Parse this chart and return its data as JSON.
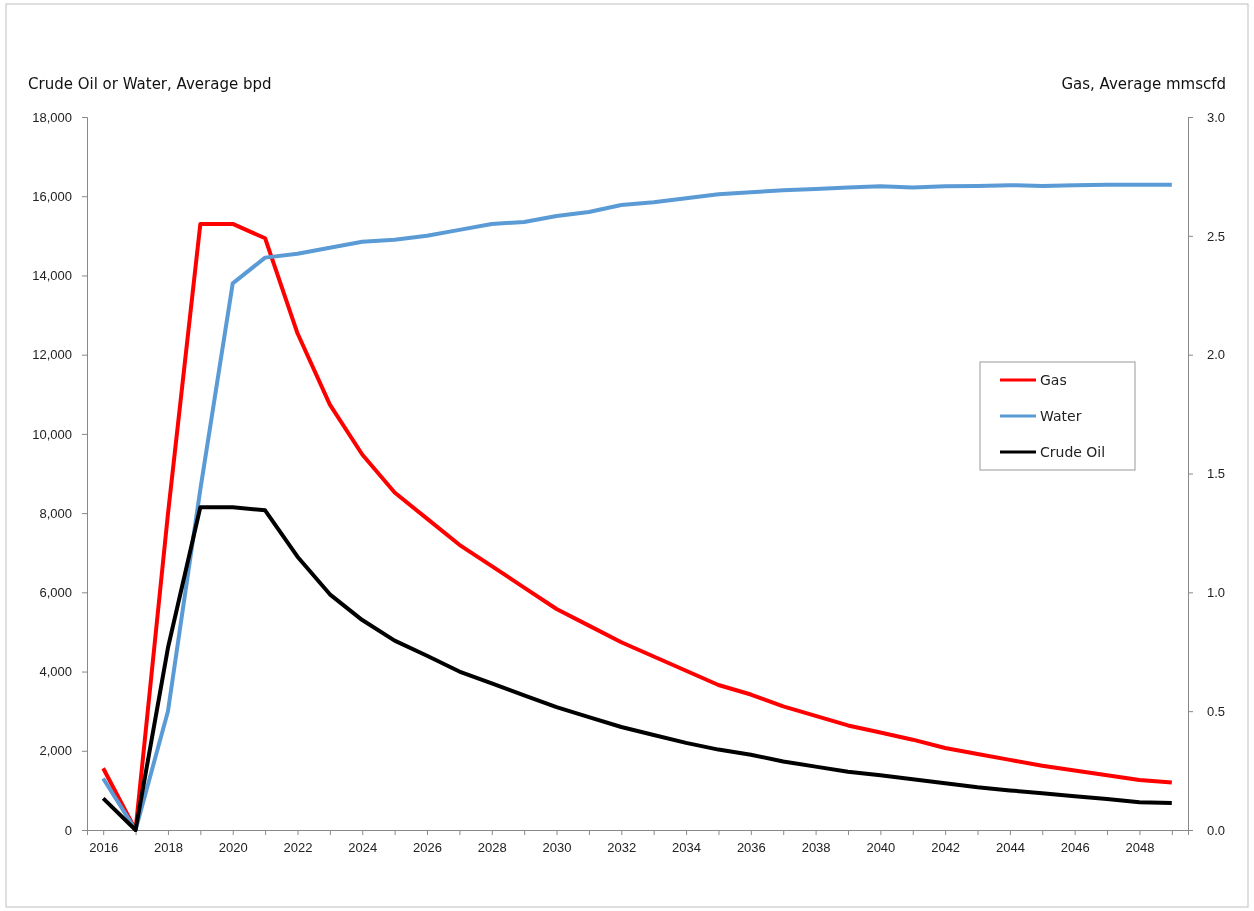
{
  "chart_data": {
    "type": "line",
    "ylabel": "Crude Oil or Water, Average bpd",
    "y2label": "Gas, Average mmscfd",
    "x": [
      2016,
      2017,
      2018,
      2019,
      2020,
      2021,
      2022,
      2023,
      2024,
      2025,
      2026,
      2027,
      2028,
      2029,
      2030,
      2031,
      2032,
      2033,
      2034,
      2035,
      2036,
      2037,
      2038,
      2039,
      2040,
      2041,
      2042,
      2043,
      2044,
      2045,
      2046,
      2047,
      2048,
      2049
    ],
    "xlim": [
      2015.5,
      2049.5
    ],
    "xticks": [
      2016,
      {
        "value": 2017,
        "label": null
      },
      2018,
      {
        "value": 2019,
        "label": null
      },
      2020,
      {
        "value": 2021,
        "label": null
      },
      2022,
      {
        "value": 2023,
        "label": null
      },
      2024,
      {
        "value": 2025,
        "label": null
      },
      2026,
      {
        "value": 2027,
        "label": null
      },
      2028,
      {
        "value": 2029,
        "label": null
      },
      2030,
      {
        "value": 2031,
        "label": null
      },
      2032,
      {
        "value": 2033,
        "label": null
      },
      2034,
      {
        "value": 2035,
        "label": null
      },
      2036,
      {
        "value": 2037,
        "label": null
      },
      2038,
      {
        "value": 2039,
        "label": null
      },
      2040,
      {
        "value": 2041,
        "label": null
      },
      2042,
      {
        "value": 2043,
        "label": null
      },
      2044,
      {
        "value": 2045,
        "label": null
      },
      2046,
      {
        "value": 2047,
        "label": null
      },
      2048,
      {
        "value": 2049,
        "label": null
      }
    ],
    "ylim": [
      0,
      18000
    ],
    "yticks": [
      {
        "value": 0,
        "label": "0"
      },
      {
        "value": 2000,
        "label": "2,000"
      },
      {
        "value": 4000,
        "label": "4,000"
      },
      {
        "value": 6000,
        "label": "6,000"
      },
      {
        "value": 8000,
        "label": "8,000"
      },
      {
        "value": 10000,
        "label": "10,000"
      },
      {
        "value": 12000,
        "label": "12,000"
      },
      {
        "value": 14000,
        "label": "14,000"
      },
      {
        "value": 16000,
        "label": "16,000"
      },
      {
        "value": 18000,
        "label": "18,000"
      }
    ],
    "y2lim": [
      0,
      3
    ],
    "y2ticks": [
      {
        "value": 0,
        "label": "0.0"
      },
      {
        "value": 0.5,
        "label": "0.5"
      },
      {
        "value": 1,
        "label": "1.0"
      },
      {
        "value": 1.5,
        "label": "1.5"
      },
      {
        "value": 2,
        "label": "2.0"
      },
      {
        "value": 2.5,
        "label": "2.5"
      },
      {
        "value": 3,
        "label": "3.0"
      }
    ],
    "grid": false,
    "legend": "right",
    "marker": "none",
    "line_style": "solid",
    "series": [
      {
        "name": "Gas",
        "color": "#ff0000",
        "axis": "y2",
        "values": [
          0.26,
          0,
          1.33,
          2.55,
          2.55,
          2.49,
          2.09,
          1.79,
          1.58,
          1.42,
          1.31,
          1.2,
          1.11,
          1.02,
          0.93,
          0.86,
          0.79,
          0.73,
          0.67,
          0.61,
          0.57,
          0.52,
          0.48,
          0.44,
          0.41,
          0.38,
          0.345,
          0.32,
          0.295,
          0.27,
          0.25,
          0.23,
          0.21,
          0.2
        ]
      },
      {
        "name": "Water",
        "color": "#5b9bd5",
        "values": [
          1300,
          0,
          3000,
          8600,
          13800,
          14450,
          14550,
          14700,
          14850,
          14900,
          15000,
          15150,
          15300,
          15350,
          15500,
          15600,
          15780,
          15850,
          15950,
          16050,
          16100,
          16150,
          16180,
          16220,
          16250,
          16220,
          16250,
          16260,
          16280,
          16260,
          16280,
          16290,
          16290,
          16290
        ]
      },
      {
        "name": "Crude Oil",
        "color": "#000000",
        "values": [
          800,
          0,
          4600,
          8150,
          8150,
          8070,
          6900,
          5950,
          5300,
          4780,
          4400,
          4000,
          3700,
          3400,
          3100,
          2850,
          2600,
          2400,
          2200,
          2030,
          1900,
          1730,
          1600,
          1470,
          1380,
          1280,
          1180,
          1080,
          1000,
          930,
          850,
          780,
          700,
          680
        ]
      }
    ]
  }
}
